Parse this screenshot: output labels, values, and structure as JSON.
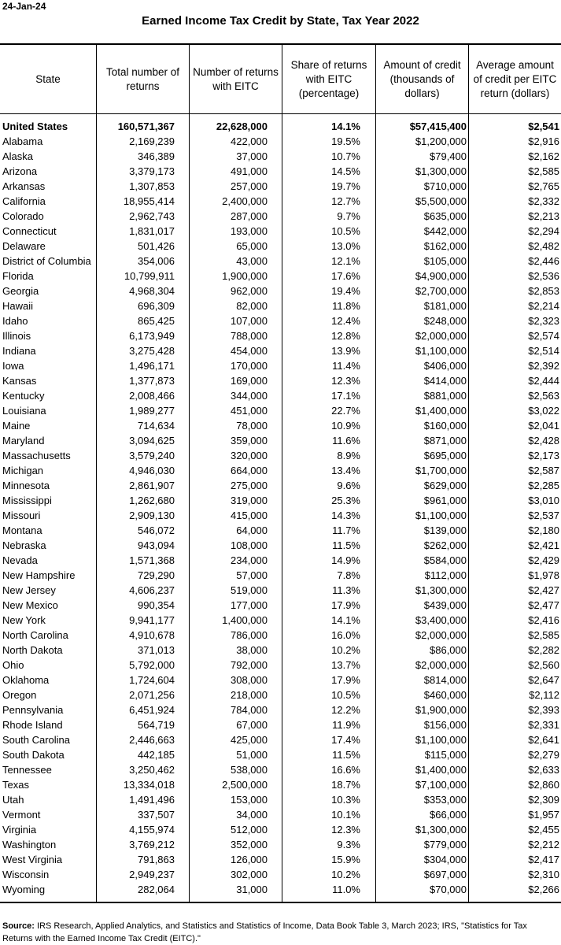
{
  "date": "24-Jan-24",
  "title": "Earned Income Tax Credit by State, Tax Year 2022",
  "headers": [
    "State",
    "Total number of returns",
    "Number of returns with EITC",
    "Share of returns with EITC (percentage)",
    "Amount of credit (thousands of dollars)",
    "Average amount of credit per EITC return (dollars)"
  ],
  "total_row": [
    "United States",
    "160,571,367",
    "22,628,000",
    "14.1%",
    "$57,415,400",
    "$2,541"
  ],
  "rows": [
    [
      "Alabama",
      "2,169,239",
      "422,000",
      "19.5%",
      "$1,200,000",
      "$2,916"
    ],
    [
      "Alaska",
      "346,389",
      "37,000",
      "10.7%",
      "$79,400",
      "$2,162"
    ],
    [
      "Arizona",
      "3,379,173",
      "491,000",
      "14.5%",
      "$1,300,000",
      "$2,585"
    ],
    [
      "Arkansas",
      "1,307,853",
      "257,000",
      "19.7%",
      "$710,000",
      "$2,765"
    ],
    [
      "California",
      "18,955,414",
      "2,400,000",
      "12.7%",
      "$5,500,000",
      "$2,332"
    ],
    [
      "Colorado",
      "2,962,743",
      "287,000",
      "9.7%",
      "$635,000",
      "$2,213"
    ],
    [
      "Connecticut",
      "1,831,017",
      "193,000",
      "10.5%",
      "$442,000",
      "$2,294"
    ],
    [
      "Delaware",
      "501,426",
      "65,000",
      "13.0%",
      "$162,000",
      "$2,482"
    ],
    [
      "District of Columbia",
      "354,006",
      "43,000",
      "12.1%",
      "$105,000",
      "$2,446"
    ],
    [
      "Florida",
      "10,799,911",
      "1,900,000",
      "17.6%",
      "$4,900,000",
      "$2,536"
    ],
    [
      "Georgia",
      "4,968,304",
      "962,000",
      "19.4%",
      "$2,700,000",
      "$2,853"
    ],
    [
      "Hawaii",
      "696,309",
      "82,000",
      "11.8%",
      "$181,000",
      "$2,214"
    ],
    [
      "Idaho",
      "865,425",
      "107,000",
      "12.4%",
      "$248,000",
      "$2,323"
    ],
    [
      "Illinois",
      "6,173,949",
      "788,000",
      "12.8%",
      "$2,000,000",
      "$2,574"
    ],
    [
      "Indiana",
      "3,275,428",
      "454,000",
      "13.9%",
      "$1,100,000",
      "$2,514"
    ],
    [
      "Iowa",
      "1,496,171",
      "170,000",
      "11.4%",
      "$406,000",
      "$2,392"
    ],
    [
      "Kansas",
      "1,377,873",
      "169,000",
      "12.3%",
      "$414,000",
      "$2,444"
    ],
    [
      "Kentucky",
      "2,008,466",
      "344,000",
      "17.1%",
      "$881,000",
      "$2,563"
    ],
    [
      "Louisiana",
      "1,989,277",
      "451,000",
      "22.7%",
      "$1,400,000",
      "$3,022"
    ],
    [
      "Maine",
      "714,634",
      "78,000",
      "10.9%",
      "$160,000",
      "$2,041"
    ],
    [
      "Maryland",
      "3,094,625",
      "359,000",
      "11.6%",
      "$871,000",
      "$2,428"
    ],
    [
      "Massachusetts",
      "3,579,240",
      "320,000",
      "8.9%",
      "$695,000",
      "$2,173"
    ],
    [
      "Michigan",
      "4,946,030",
      "664,000",
      "13.4%",
      "$1,700,000",
      "$2,587"
    ],
    [
      "Minnesota",
      "2,861,907",
      "275,000",
      "9.6%",
      "$629,000",
      "$2,285"
    ],
    [
      "Mississippi",
      "1,262,680",
      "319,000",
      "25.3%",
      "$961,000",
      "$3,010"
    ],
    [
      "Missouri",
      "2,909,130",
      "415,000",
      "14.3%",
      "$1,100,000",
      "$2,537"
    ],
    [
      "Montana",
      "546,072",
      "64,000",
      "11.7%",
      "$139,000",
      "$2,180"
    ],
    [
      "Nebraska",
      "943,094",
      "108,000",
      "11.5%",
      "$262,000",
      "$2,421"
    ],
    [
      "Nevada",
      "1,571,368",
      "234,000",
      "14.9%",
      "$584,000",
      "$2,429"
    ],
    [
      "New Hampshire",
      "729,290",
      "57,000",
      "7.8%",
      "$112,000",
      "$1,978"
    ],
    [
      "New Jersey",
      "4,606,237",
      "519,000",
      "11.3%",
      "$1,300,000",
      "$2,427"
    ],
    [
      "New Mexico",
      "990,354",
      "177,000",
      "17.9%",
      "$439,000",
      "$2,477"
    ],
    [
      "New York",
      "9,941,177",
      "1,400,000",
      "14.1%",
      "$3,400,000",
      "$2,416"
    ],
    [
      "North Carolina",
      "4,910,678",
      "786,000",
      "16.0%",
      "$2,000,000",
      "$2,585"
    ],
    [
      "North Dakota",
      "371,013",
      "38,000",
      "10.2%",
      "$86,000",
      "$2,282"
    ],
    [
      "Ohio",
      "5,792,000",
      "792,000",
      "13.7%",
      "$2,000,000",
      "$2,560"
    ],
    [
      "Oklahoma",
      "1,724,604",
      "308,000",
      "17.9%",
      "$814,000",
      "$2,647"
    ],
    [
      "Oregon",
      "2,071,256",
      "218,000",
      "10.5%",
      "$460,000",
      "$2,112"
    ],
    [
      "Pennsylvania",
      "6,451,924",
      "784,000",
      "12.2%",
      "$1,900,000",
      "$2,393"
    ],
    [
      "Rhode Island",
      "564,719",
      "67,000",
      "11.9%",
      "$156,000",
      "$2,331"
    ],
    [
      "South Carolina",
      "2,446,663",
      "425,000",
      "17.4%",
      "$1,100,000",
      "$2,641"
    ],
    [
      "South Dakota",
      "442,185",
      "51,000",
      "11.5%",
      "$115,000",
      "$2,279"
    ],
    [
      "Tennessee",
      "3,250,462",
      "538,000",
      "16.6%",
      "$1,400,000",
      "$2,633"
    ],
    [
      "Texas",
      "13,334,018",
      "2,500,000",
      "18.7%",
      "$7,100,000",
      "$2,860"
    ],
    [
      "Utah",
      "1,491,496",
      "153,000",
      "10.3%",
      "$353,000",
      "$2,309"
    ],
    [
      "Vermont",
      "337,507",
      "34,000",
      "10.1%",
      "$66,000",
      "$1,957"
    ],
    [
      "Virginia",
      "4,155,974",
      "512,000",
      "12.3%",
      "$1,300,000",
      "$2,455"
    ],
    [
      "Washington",
      "3,769,212",
      "352,000",
      "9.3%",
      "$779,000",
      "$2,212"
    ],
    [
      "West Virginia",
      "791,863",
      "126,000",
      "15.9%",
      "$304,000",
      "$2,417"
    ],
    [
      "Wisconsin",
      "2,949,237",
      "302,000",
      "10.2%",
      "$697,000",
      "$2,310"
    ],
    [
      "Wyoming",
      "282,064",
      "31,000",
      "11.0%",
      "$70,000",
      "$2,266"
    ]
  ],
  "source": {
    "label": "Source:",
    "text": " IRS Research, Applied Analytics, and Statistics and Statistics of Income, Data Book Table 3, March 2023; IRS, \"Statistics for Tax Returns with the Earned Income Tax Credit (EITC).\""
  }
}
